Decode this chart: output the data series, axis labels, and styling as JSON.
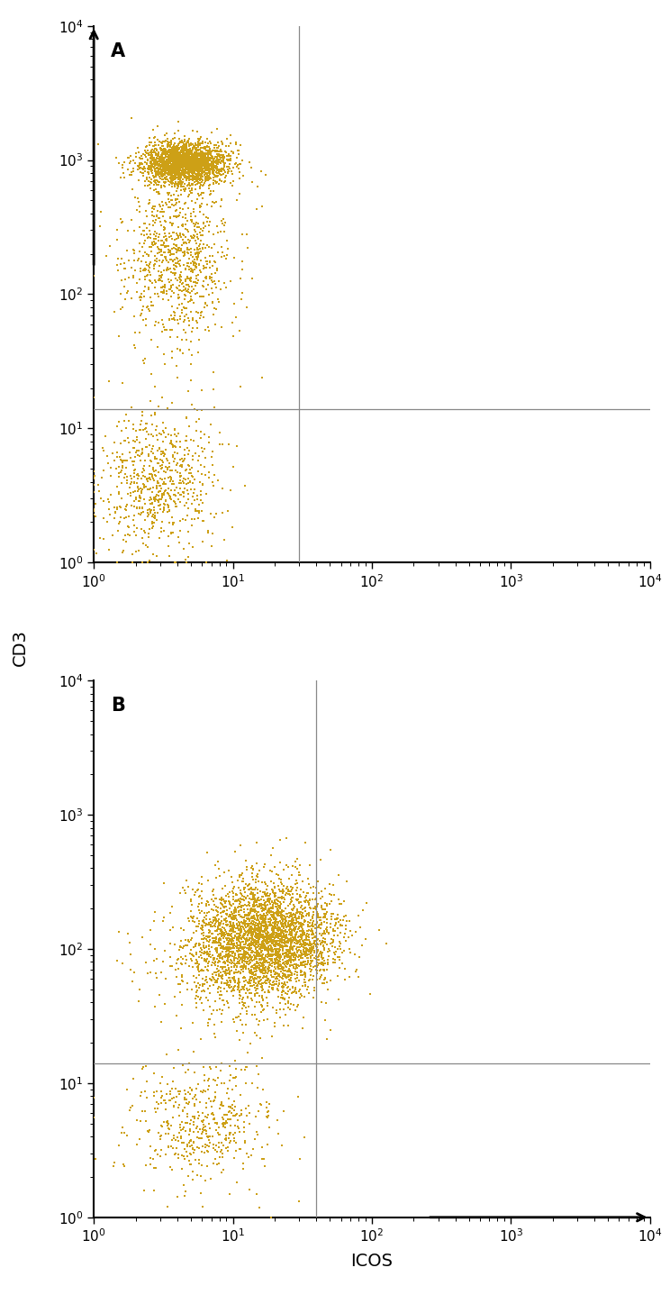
{
  "dot_color": "#CDA016",
  "background_color": "#ffffff",
  "panel_labels": [
    "A",
    "B"
  ],
  "xlabel": "ICOS",
  "ylabel": "CD3",
  "xlim": [
    1,
    10000
  ],
  "ylim": [
    1,
    10000
  ],
  "vline_A": 30,
  "hline_A": 14,
  "vline_B": 40,
  "hline_B": 14,
  "dot_size": 3.0,
  "gate_color": "#888888",
  "gate_lw": 0.9,
  "spine_color": "#000000",
  "spine_lw": 1.5,
  "tick_labelsize": 11,
  "label_fontsize": 14,
  "panel_label_fontsize": 15,
  "panel_A": {
    "n_main": 2200,
    "n_scatter": 900,
    "n_low": 700
  },
  "panel_B": {
    "n_main": 2800,
    "n_scatter": 600,
    "n_low": 500
  }
}
